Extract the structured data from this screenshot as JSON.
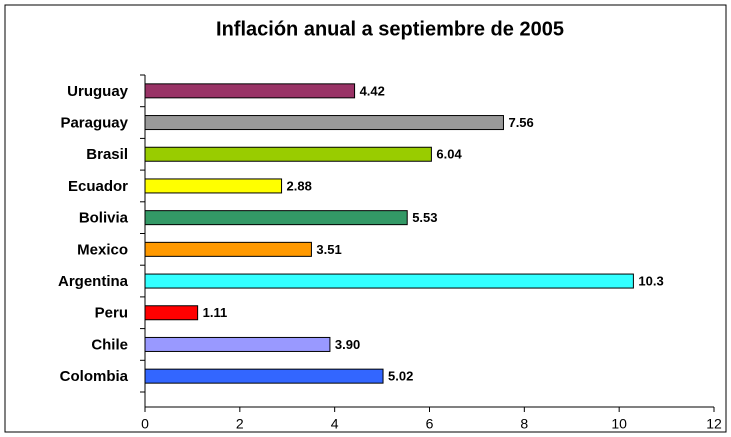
{
  "chart_data": {
    "type": "hbar",
    "title": "Inflación anual a septiembre de 2005",
    "categories": [
      "Uruguay",
      "Paraguay",
      "Brasil",
      "Ecuador",
      "Bolivia",
      "Mexico",
      "Argentina",
      "Peru",
      "Chile",
      "Colombia"
    ],
    "values": [
      4.42,
      7.56,
      6.04,
      2.88,
      5.53,
      3.51,
      10.3,
      1.11,
      3.9,
      5.02
    ],
    "value_labels": [
      "4.42",
      "7.56",
      "6.04",
      "2.88",
      "5.53",
      "3.51",
      "10.3",
      "1.11",
      "3.90",
      "5.02"
    ],
    "colors": [
      "#993366",
      "#999999",
      "#99cc00",
      "#ffff00",
      "#339966",
      "#ff9900",
      "#33ffff",
      "#ff0000",
      "#9999ff",
      "#3366ff"
    ],
    "xlim": [
      0,
      12
    ],
    "xticks": [
      0,
      2,
      4,
      6,
      8,
      10,
      12
    ]
  }
}
